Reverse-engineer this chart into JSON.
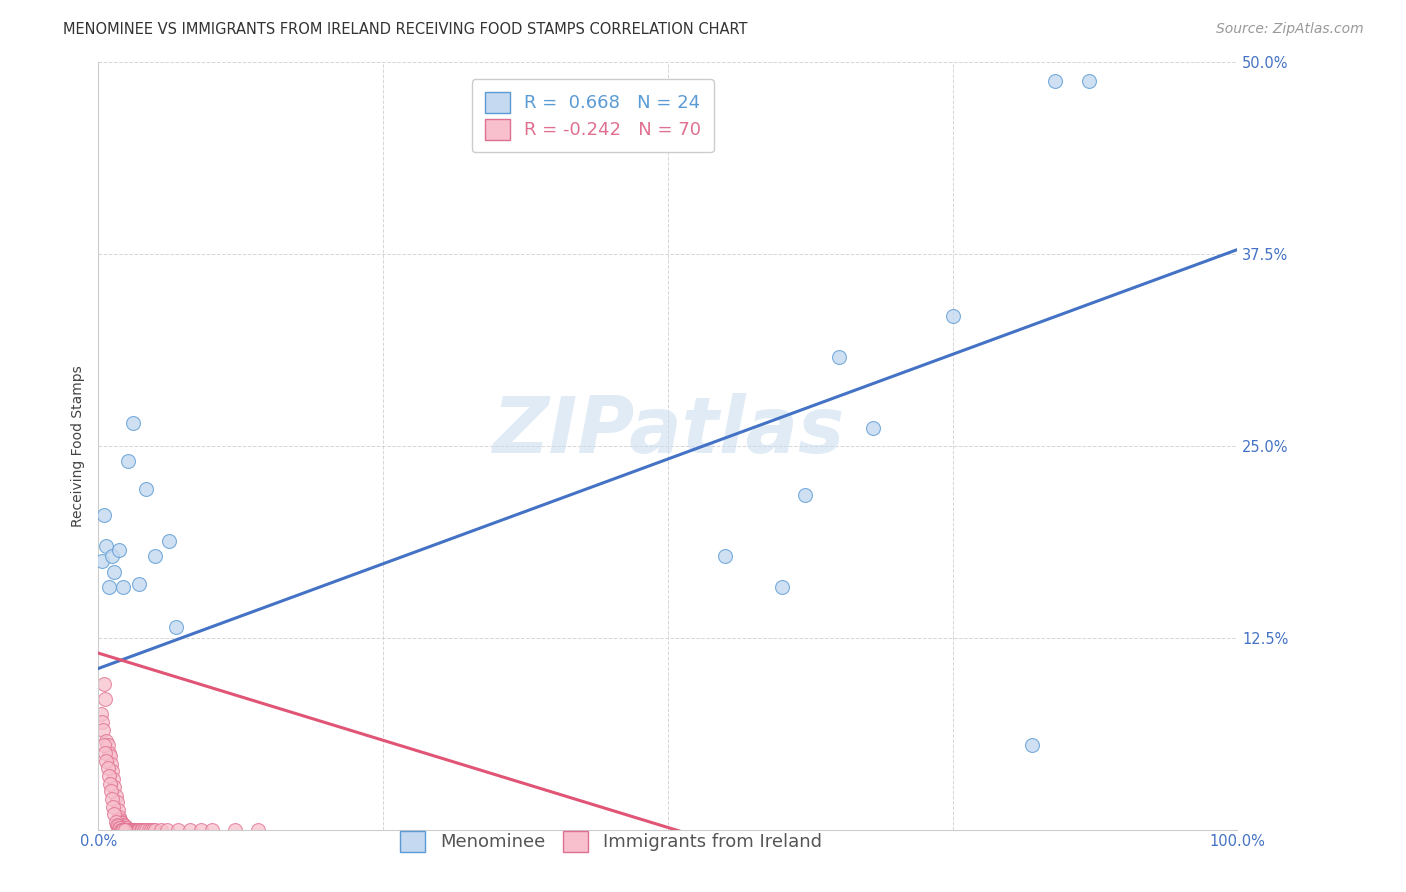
{
  "title": "MENOMINEE VS IMMIGRANTS FROM IRELAND RECEIVING FOOD STAMPS CORRELATION CHART",
  "source": "Source: ZipAtlas.com",
  "ylabel": "Receiving Food Stamps",
  "xlabel": "",
  "xlim": [
    0.0,
    1.0
  ],
  "ylim": [
    0.0,
    0.5
  ],
  "xtick_positions": [
    0.0,
    0.25,
    0.5,
    0.75,
    1.0
  ],
  "xticklabels": [
    "0.0%",
    "",
    "",
    "",
    "100.0%"
  ],
  "ytick_positions": [
    0.0,
    0.125,
    0.25,
    0.375,
    0.5
  ],
  "yticklabels": [
    "",
    "12.5%",
    "25.0%",
    "37.5%",
    "50.0%"
  ],
  "watermark": "ZIPatlas",
  "blue_fill": "#c5d9f0",
  "pink_fill": "#f7c0cc",
  "blue_edge": "#5b9bd5",
  "pink_edge": "#e07090",
  "blue_line_color": "#4472c4",
  "pink_line_color": "#e05575",
  "legend_blue_label": "R =  0.668   N = 24",
  "legend_pink_label": "R = -0.242   N = 70",
  "menominee_label": "Menominee",
  "ireland_label": "Immigrants from Ireland",
  "blue_line_x0": 0.0,
  "blue_line_y0": 0.105,
  "blue_line_x1": 1.0,
  "blue_line_y1": 0.378,
  "pink_line_x0": 0.0,
  "pink_line_y0": 0.115,
  "pink_line_x1": 0.55,
  "pink_line_y1": -0.01,
  "blue_scatter_x": [
    0.003,
    0.005,
    0.007,
    0.009,
    0.012,
    0.014,
    0.018,
    0.022,
    0.026,
    0.03,
    0.036,
    0.042,
    0.05,
    0.062,
    0.068,
    0.55,
    0.6,
    0.65,
    0.68,
    0.62,
    0.75,
    0.82,
    0.84,
    0.87
  ],
  "blue_scatter_y": [
    0.175,
    0.205,
    0.185,
    0.158,
    0.178,
    0.168,
    0.182,
    0.158,
    0.24,
    0.265,
    0.16,
    0.222,
    0.178,
    0.188,
    0.132,
    0.178,
    0.158,
    0.308,
    0.262,
    0.218,
    0.335,
    0.055,
    0.488,
    0.488
  ],
  "pink_scatter_x": [
    0.002,
    0.003,
    0.004,
    0.005,
    0.006,
    0.007,
    0.008,
    0.009,
    0.01,
    0.011,
    0.012,
    0.013,
    0.014,
    0.015,
    0.016,
    0.017,
    0.018,
    0.019,
    0.02,
    0.021,
    0.022,
    0.023,
    0.024,
    0.025,
    0.026,
    0.027,
    0.028,
    0.029,
    0.03,
    0.031,
    0.032,
    0.033,
    0.034,
    0.035,
    0.036,
    0.037,
    0.038,
    0.04,
    0.042,
    0.044,
    0.046,
    0.048,
    0.05,
    0.055,
    0.06,
    0.07,
    0.08,
    0.09,
    0.1,
    0.12,
    0.14,
    0.005,
    0.006,
    0.007,
    0.008,
    0.009,
    0.01,
    0.011,
    0.012,
    0.013,
    0.014,
    0.015,
    0.016,
    0.017,
    0.018,
    0.019,
    0.02,
    0.021,
    0.022,
    0.023
  ],
  "pink_scatter_y": [
    0.075,
    0.07,
    0.065,
    0.095,
    0.085,
    0.058,
    0.055,
    0.05,
    0.048,
    0.043,
    0.038,
    0.033,
    0.028,
    0.022,
    0.018,
    0.013,
    0.008,
    0.006,
    0.005,
    0.004,
    0.003,
    0.002,
    0.001,
    0.001,
    0.0,
    0.0,
    0.0,
    0.0,
    0.0,
    0.0,
    0.0,
    0.0,
    0.0,
    0.0,
    0.0,
    0.0,
    0.0,
    0.0,
    0.0,
    0.0,
    0.0,
    0.0,
    0.0,
    0.0,
    0.0,
    0.0,
    0.0,
    0.0,
    0.0,
    0.0,
    0.0,
    0.055,
    0.05,
    0.045,
    0.04,
    0.035,
    0.03,
    0.025,
    0.02,
    0.015,
    0.01,
    0.005,
    0.003,
    0.002,
    0.001,
    0.001,
    0.0,
    0.0,
    0.0,
    0.0
  ],
  "title_fontsize": 10.5,
  "axis_label_fontsize": 10,
  "tick_fontsize": 10.5,
  "legend_fontsize": 13,
  "source_fontsize": 10,
  "marker_size": 100,
  "line_width": 2.2
}
